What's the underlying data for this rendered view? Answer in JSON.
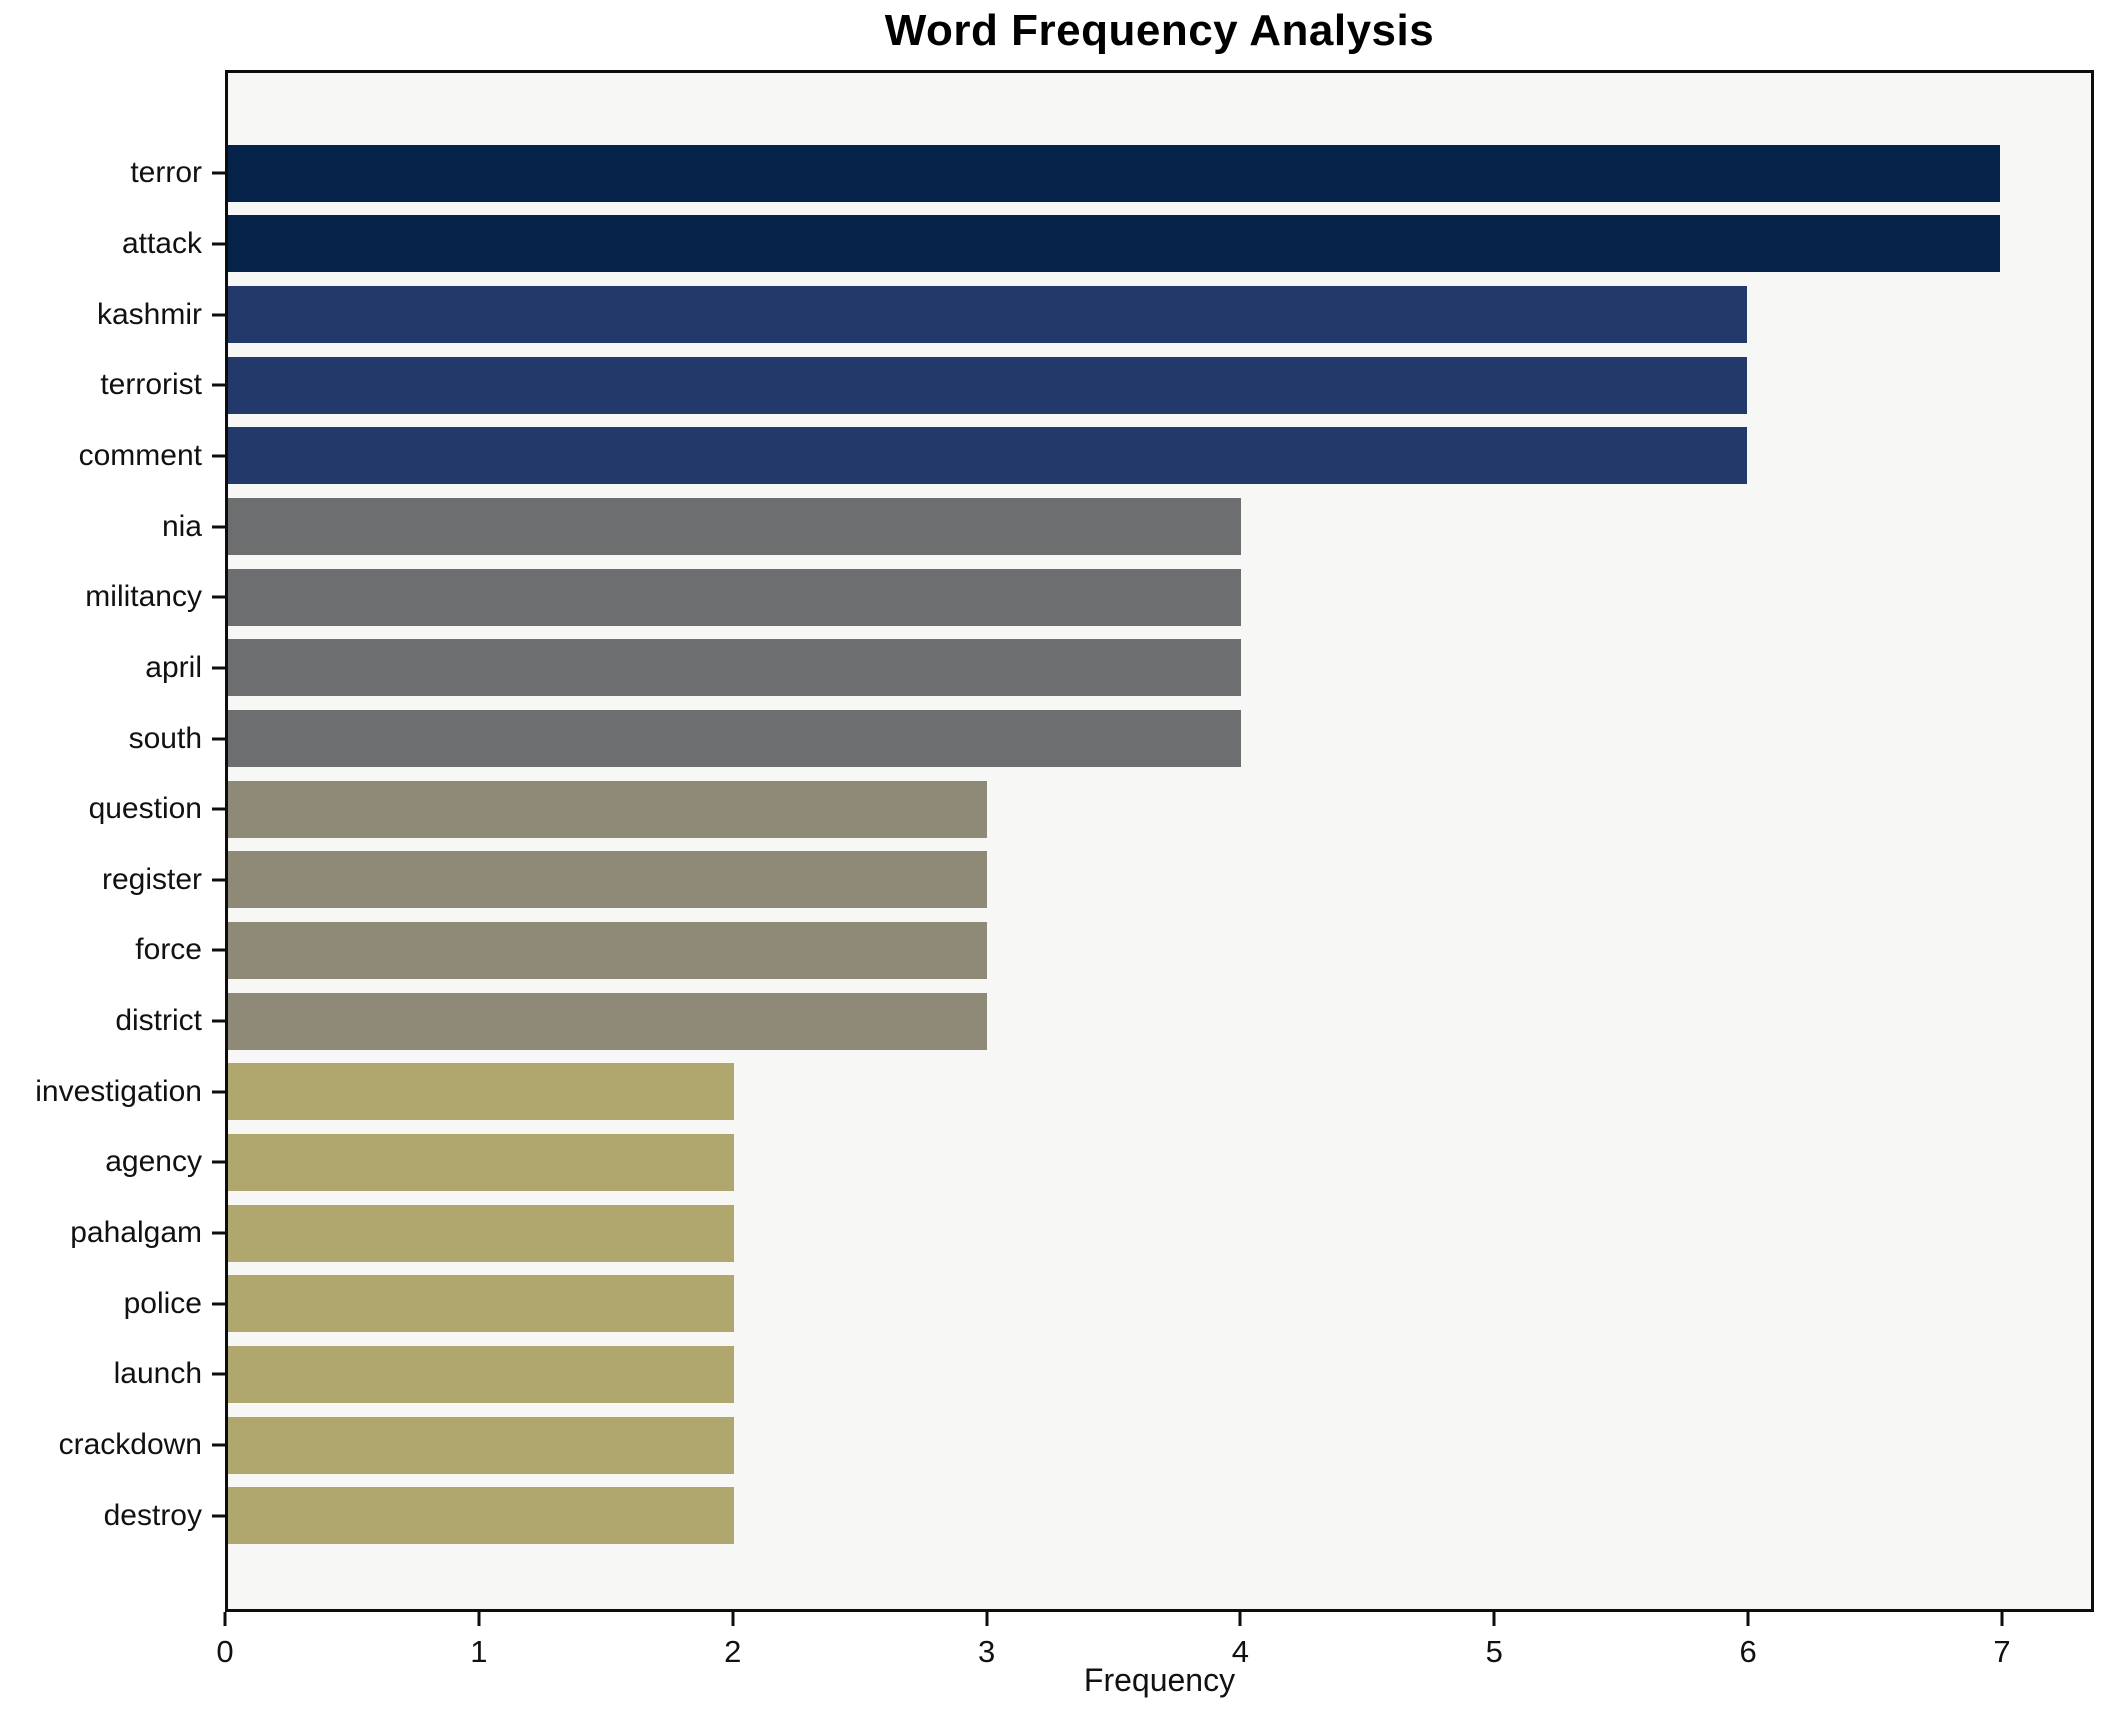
{
  "title": "Word Frequency Analysis",
  "chart_data": {
    "type": "bar",
    "orientation": "horizontal",
    "title": "Word Frequency Analysis",
    "xlabel": "Frequency",
    "ylabel": "",
    "categories": [
      "terror",
      "attack",
      "kashmir",
      "terrorist",
      "comment",
      "nia",
      "militancy",
      "april",
      "south",
      "question",
      "register",
      "force",
      "district",
      "investigation",
      "agency",
      "pahalgam",
      "police",
      "launch",
      "crackdown",
      "destroy"
    ],
    "values": [
      7,
      7,
      6,
      6,
      6,
      4,
      4,
      4,
      4,
      3,
      3,
      3,
      3,
      2,
      2,
      2,
      2,
      2,
      2,
      2
    ],
    "bar_colors": [
      "#062349",
      "#062349",
      "#22396a",
      "#22396a",
      "#22396a",
      "#6c6e70",
      "#6c6e70",
      "#6c6e70",
      "#6c6e70",
      "#8f8978",
      "#8f8978",
      "#8f8978",
      "#8f8978",
      "#b0a76e",
      "#b0a76e",
      "#b0a76e",
      "#b0a76e",
      "#b0a76e",
      "#b0a76e",
      "#b0a76e"
    ],
    "x_ticks": [
      0,
      1,
      2,
      3,
      4,
      5,
      6,
      7
    ],
    "xlim": [
      0,
      7.36
    ],
    "grid": false,
    "legend_position": "none",
    "plot_background": "#f7f7f6",
    "figure_background": "#ffffff",
    "spine_color": "#0d0d0d",
    "color_legend": {
      "frequency_7": "#062349",
      "frequency_6": "#22396a",
      "frequency_4": "#6c6e70",
      "frequency_3": "#8f8978",
      "frequency_2": "#b0a76e"
    }
  }
}
